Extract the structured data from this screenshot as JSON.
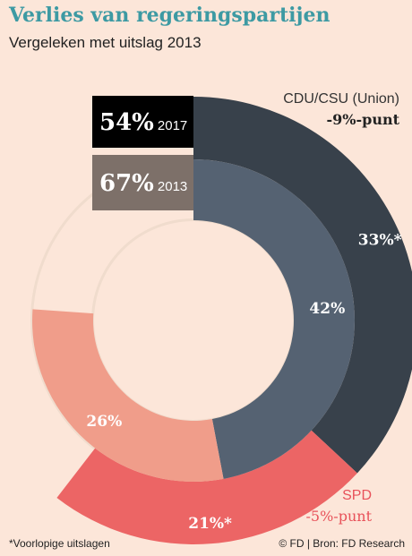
{
  "header": {
    "title": "Verlies van regeringspartijen",
    "subtitle": "Vergeleken met uitslag 2013"
  },
  "footer": {
    "footnote": "*Voorlopige uitslagen",
    "source": "© FD | Bron: FD Research"
  },
  "chart_data": {
    "type": "pie",
    "style": "nested-donut",
    "rings": [
      {
        "ring": "outer",
        "year": "2017",
        "total_label": "54%",
        "total": 54,
        "slices": [
          {
            "party": "CDU/CSU (Union)",
            "label": "33%*",
            "value": 33,
            "color": "#38414b"
          },
          {
            "party": "SPD",
            "label": "21%*",
            "value": 21,
            "color": "#ec6565"
          }
        ]
      },
      {
        "ring": "inner",
        "year": "2013",
        "total_label": "67%",
        "total": 67,
        "slices": [
          {
            "party": "CDU/CSU (Union)",
            "label": "42%",
            "value": 42,
            "color": "#556272"
          },
          {
            "party": "SPD",
            "label": "26%",
            "value": 26,
            "color": "#f09d8a"
          }
        ]
      }
    ],
    "annotations": [
      {
        "party": "CDU/CSU (Union)",
        "change": "-9%-punt",
        "change_value": -9
      },
      {
        "party": "SPD",
        "change": "-5%-punt",
        "change_value": -5
      }
    ],
    "colors": {
      "title": "#3d9aa3",
      "year_2017_box": "#000000",
      "year_2013_box": "#7d7069",
      "background": "#fce6d9",
      "track": "#f0dccd"
    }
  }
}
